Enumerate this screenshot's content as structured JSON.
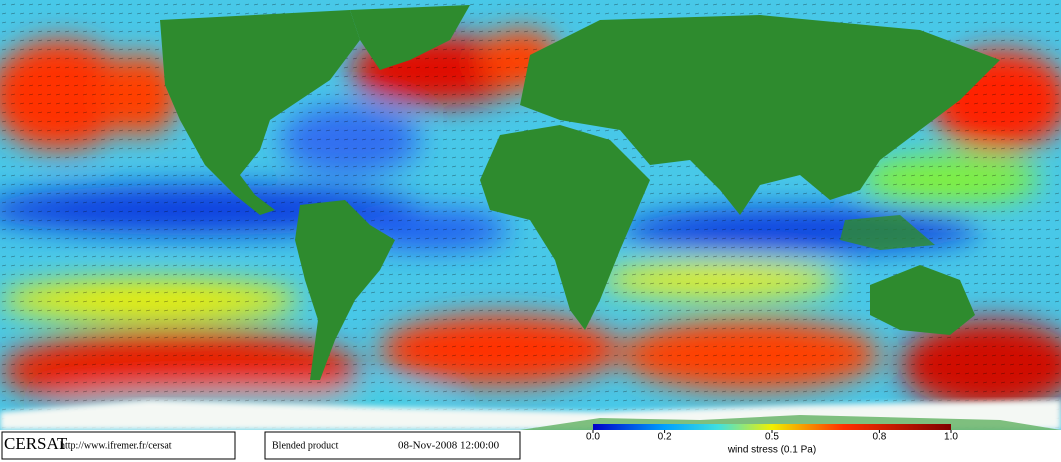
{
  "footer": {
    "logo": "CERSAT",
    "url": "http://www.ifremer.fr/cersat",
    "product": "Blended product",
    "datetime": "08-Nov-2008 12:00:00"
  },
  "colorbar": {
    "label": "wind stress (0.1 Pa)",
    "range": [
      0,
      1
    ],
    "ticks": [
      {
        "value": 0,
        "label": "0.0"
      },
      0.2,
      0.5,
      0.8,
      {
        "value": 1,
        "label": "1.0"
      }
    ]
  }
}
